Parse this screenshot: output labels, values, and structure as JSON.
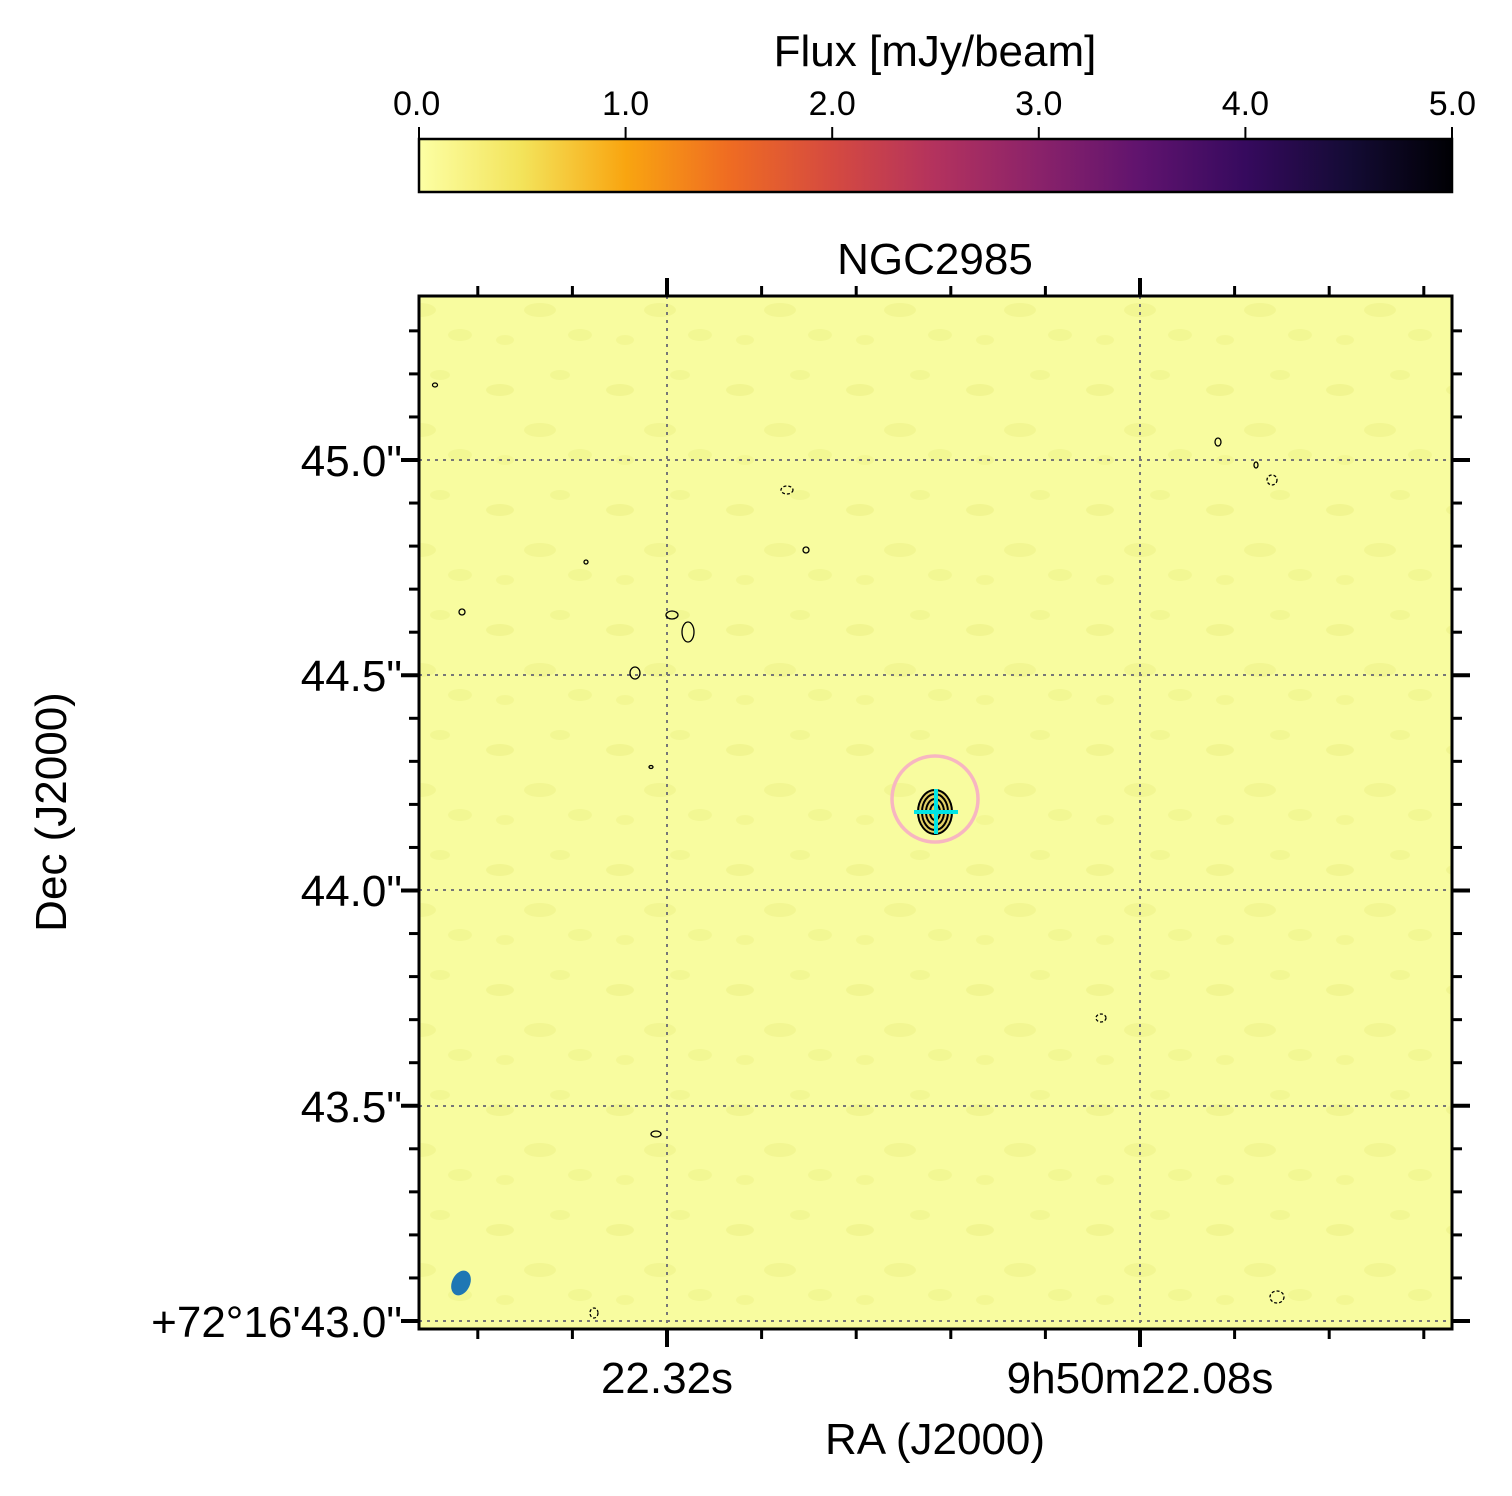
{
  "chart_data": {
    "type": "heatmap",
    "title": "NGC2985",
    "xlabel": "RA (J2000)",
    "ylabel": "Dec (J2000)",
    "x_tick_labels": [
      "22.32s",
      "9h50m22.08s"
    ],
    "y_tick_labels": [
      "+72°16'43.0\"",
      "43.5\"",
      "44.0\"",
      "44.5\"",
      "45.0\""
    ],
    "y_ticks_arcsec": [
      43.0,
      43.5,
      44.0,
      44.5,
      45.0
    ],
    "grid": true,
    "colorbar": {
      "label": "Flux [mJy/beam]",
      "tick_labels": [
        "0.0",
        "1.0",
        "2.0",
        "3.0",
        "4.0",
        "5.0"
      ],
      "range": [
        0.0,
        5.0
      ],
      "colormap": "inferno_r",
      "position": "top"
    },
    "background_color": "#f8fc9f",
    "source_marker": {
      "type": "circle",
      "color": "#f7b6c1"
    },
    "peak_marker": {
      "type": "cross",
      "color": "#00e5e5"
    },
    "beam": {
      "color": "#1f77b4",
      "position": "bottom-left"
    }
  }
}
